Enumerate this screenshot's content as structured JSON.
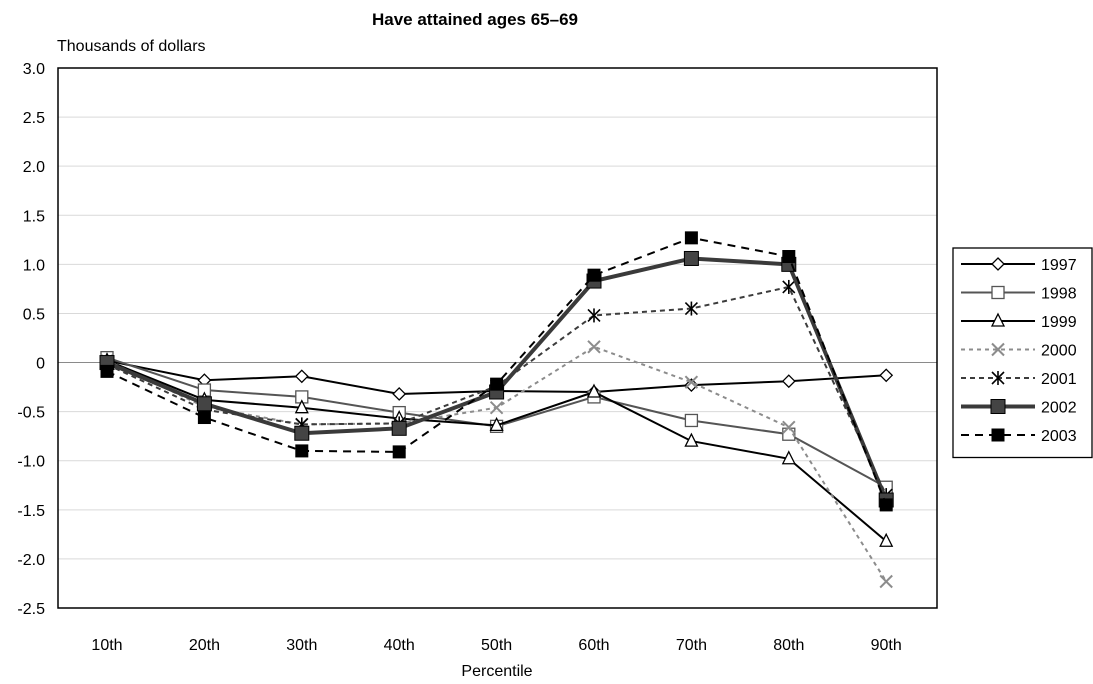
{
  "chart_data": {
    "type": "line",
    "title": "Have attained ages 65–69",
    "ylabel": "Thousands of dollars",
    "xlabel": "Percentile",
    "categories": [
      "10th",
      "20th",
      "30th",
      "40th",
      "50th",
      "60th",
      "70th",
      "80th",
      "90th"
    ],
    "ylim": [
      -2.5,
      3.0
    ],
    "yticks": [
      "3.0",
      "2.5",
      "2.0",
      "1.5",
      "1.0",
      "0.5",
      "0",
      "-0.5",
      "-1.0",
      "-1.5",
      "-2.0",
      "-2.5"
    ],
    "ytick_values": [
      3.0,
      2.5,
      2.0,
      1.5,
      1.0,
      0.5,
      0,
      -0.5,
      -1.0,
      -1.5,
      -2.0,
      -2.5
    ],
    "grid": true,
    "legend_position": "right",
    "series": [
      {
        "name": "1997",
        "values": [
          0.02,
          -0.18,
          -0.14,
          -0.32,
          -0.29,
          -0.3,
          -0.23,
          -0.19,
          -0.13
        ],
        "color": "#000000",
        "dash": "",
        "width": 2,
        "marker": "diamond"
      },
      {
        "name": "1998",
        "values": [
          0.05,
          -0.28,
          -0.35,
          -0.51,
          -0.65,
          -0.35,
          -0.59,
          -0.73,
          -1.27
        ],
        "color": "#555555",
        "dash": "",
        "width": 2,
        "marker": "square-open"
      },
      {
        "name": "1999",
        "values": [
          0.02,
          -0.38,
          -0.46,
          -0.57,
          -0.64,
          -0.3,
          -0.8,
          -0.98,
          -1.82
        ],
        "color": "#000000",
        "dash": "",
        "width": 2,
        "marker": "triangle"
      },
      {
        "name": "2000",
        "values": [
          0.02,
          -0.45,
          -0.63,
          -0.62,
          -0.46,
          0.16,
          -0.2,
          -0.66,
          -2.23
        ],
        "color": "#8c8c8c",
        "dash": "4,4",
        "width": 2,
        "marker": "x"
      },
      {
        "name": "2001",
        "values": [
          -0.02,
          -0.48,
          -0.63,
          -0.62,
          -0.24,
          0.48,
          0.55,
          0.77,
          -1.35
        ],
        "color": "#3c3c3c",
        "dash": "5,4",
        "width": 2,
        "marker": "asterisk"
      },
      {
        "name": "2002",
        "values": [
          0.0,
          -0.42,
          -0.72,
          -0.67,
          -0.3,
          0.83,
          1.06,
          1.0,
          -1.4
        ],
        "color": "#3a3a3a",
        "dash": "",
        "width": 4,
        "marker": "square-filled-gray"
      },
      {
        "name": "2003",
        "values": [
          -0.09,
          -0.56,
          -0.9,
          -0.91,
          -0.22,
          0.89,
          1.27,
          1.08,
          -1.45
        ],
        "color": "#000000",
        "dash": "8,6",
        "width": 2,
        "marker": "square-filled"
      }
    ]
  }
}
